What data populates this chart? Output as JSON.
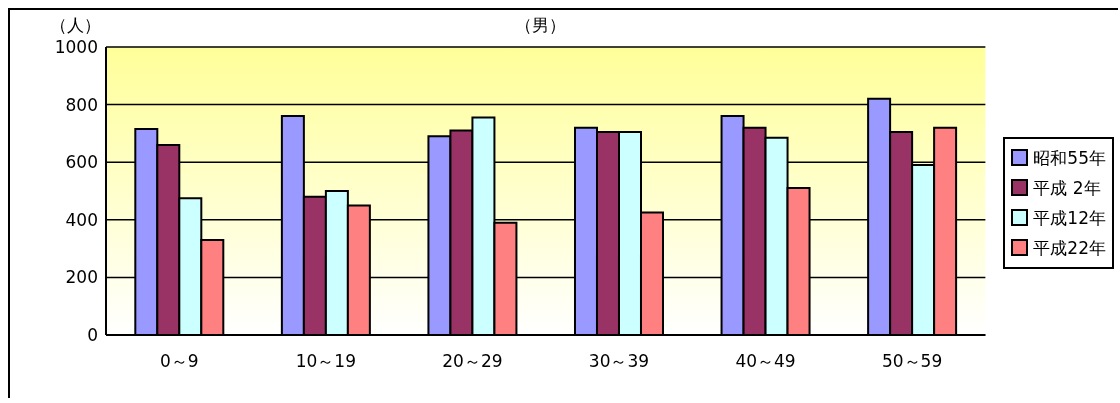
{
  "chart_data": {
    "type": "bar",
    "title": "（男）",
    "ylabel": "（人）",
    "categories": [
      "0～9",
      "10～19",
      "20～29",
      "30～39",
      "40～49",
      "50～59"
    ],
    "series": [
      {
        "name": "昭和55年",
        "color": "#9999ff",
        "values": [
          715,
          760,
          690,
          720,
          760,
          820
        ]
      },
      {
        "name": "平成 2年",
        "color": "#993366",
        "values": [
          660,
          480,
          710,
          705,
          720,
          705
        ]
      },
      {
        "name": "平成12年",
        "color": "#ccffff",
        "values": [
          475,
          500,
          755,
          705,
          685,
          590
        ]
      },
      {
        "name": "平成22年",
        "color": "#ff8080",
        "values": [
          330,
          450,
          390,
          425,
          510,
          720
        ]
      }
    ],
    "ylim": [
      0,
      1000
    ],
    "yticks": [
      0,
      200,
      400,
      600,
      800,
      1000
    ],
    "grid": "y",
    "legend": "right"
  }
}
